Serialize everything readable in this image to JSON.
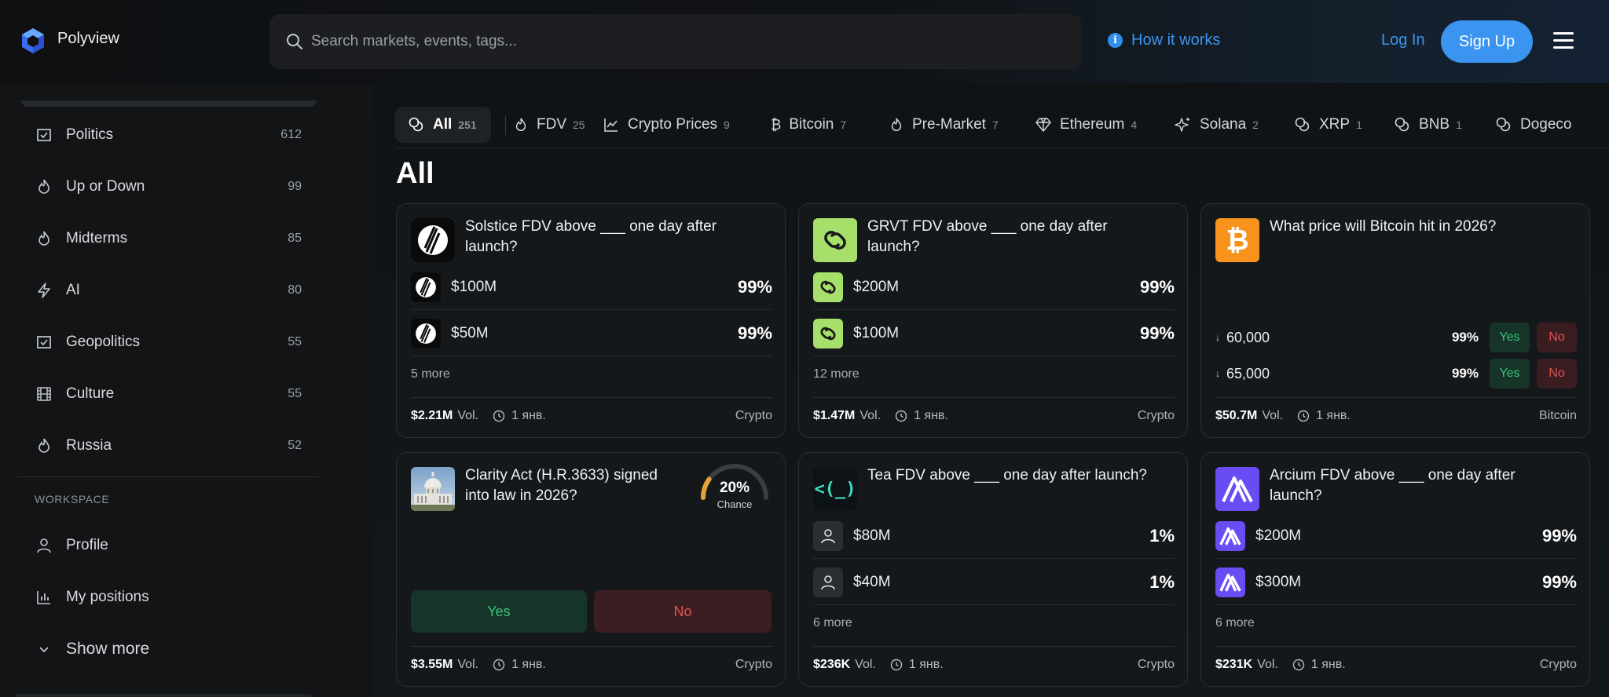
{
  "header": {
    "brand": "Polyview",
    "search_placeholder": "Search markets, events, tags...",
    "how_it_works": "How it works",
    "login": "Log In",
    "signup": "Sign Up"
  },
  "sidebar": {
    "items": [
      {
        "label": "Politics",
        "count": "612",
        "icon": "checkbox-icon"
      },
      {
        "label": "Up or Down",
        "count": "99",
        "icon": "flame-icon"
      },
      {
        "label": "Midterms",
        "count": "85",
        "icon": "flame-icon"
      },
      {
        "label": "AI",
        "count": "80",
        "icon": "bolt-icon"
      },
      {
        "label": "Geopolitics",
        "count": "55",
        "icon": "checkbox-icon"
      },
      {
        "label": "Culture",
        "count": "55",
        "icon": "film-icon"
      },
      {
        "label": "Russia",
        "count": "52",
        "icon": "flame-icon"
      }
    ],
    "section_label": "WORKSPACE",
    "workspace": [
      {
        "label": "Profile",
        "icon": "user-icon"
      },
      {
        "label": "My positions",
        "icon": "bar-chart-icon"
      },
      {
        "label": "Show more",
        "icon": "chevron-down-icon"
      }
    ]
  },
  "tabs": [
    {
      "label": "All",
      "count": "251",
      "icon": "coins-icon"
    },
    {
      "label": "FDV",
      "count": "25",
      "icon": "flame-icon"
    },
    {
      "label": "Crypto Prices",
      "count": "9",
      "icon": "line-chart-icon"
    },
    {
      "label": "Bitcoin",
      "count": "7",
      "icon": "bitcoin-icon"
    },
    {
      "label": "Pre-Market",
      "count": "7",
      "icon": "flame-icon"
    },
    {
      "label": "Ethereum",
      "count": "4",
      "icon": "diamond-icon"
    },
    {
      "label": "Solana",
      "count": "2",
      "icon": "sparkle-icon"
    },
    {
      "label": "XRP",
      "count": "1",
      "icon": "coins-icon"
    },
    {
      "label": "BNB",
      "count": "1",
      "icon": "coins-icon"
    },
    {
      "label": "Dogeco",
      "count": "",
      "icon": "coins-icon"
    }
  ],
  "page_title": "All",
  "cards": [
    {
      "title": "Solstice FDV above ___ one day after launch?",
      "outcomes": [
        {
          "name": "$100M",
          "pct": "99%"
        },
        {
          "name": "$50M",
          "pct": "99%"
        }
      ],
      "more": "5 more",
      "volume": "$2.21M",
      "vol_label": "Vol.",
      "date": "1 янв.",
      "category": "Crypto"
    },
    {
      "title": "GRVT FDV above ___ one day after launch?",
      "outcomes": [
        {
          "name": "$200M",
          "pct": "99%"
        },
        {
          "name": "$100M",
          "pct": "99%"
        }
      ],
      "more": "12 more",
      "volume": "$1.47M",
      "vol_label": "Vol.",
      "date": "1 янв.",
      "category": "Crypto"
    },
    {
      "title": "What price will Bitcoin hit in 2026?",
      "outcomes": [
        {
          "arrow": "↓",
          "name": "60,000",
          "pct": "99%",
          "yes": "Yes",
          "no": "No"
        },
        {
          "arrow": "↓",
          "name": "65,000",
          "pct": "99%",
          "yes": "Yes",
          "no": "No"
        }
      ],
      "volume": "$50.7M",
      "vol_label": "Vol.",
      "date": "1 янв.",
      "category": "Bitcoin"
    },
    {
      "title": "Clarity Act (H.R.3633) signed into law in 2026?",
      "chance_value": "20%",
      "chance_label": "Chance",
      "chance_fraction": 0.2,
      "yes": "Yes",
      "no": "No",
      "volume": "$3.55M",
      "vol_label": "Vol.",
      "date": "1 янв.",
      "category": "Crypto"
    },
    {
      "title": "Tea FDV above ___ one day after launch?",
      "outcomes": [
        {
          "name": "$80M",
          "pct": "1%"
        },
        {
          "name": "$40M",
          "pct": "1%"
        }
      ],
      "more": "6 more",
      "volume": "$236K",
      "vol_label": "Vol.",
      "date": "1 янв.",
      "category": "Crypto"
    },
    {
      "title": "Arcium FDV above ___ one day after launch?",
      "outcomes": [
        {
          "name": "$200M",
          "pct": "99%"
        },
        {
          "name": "$300M",
          "pct": "99%"
        }
      ],
      "more": "6 more",
      "volume": "$231K",
      "vol_label": "Vol.",
      "date": "1 янв.",
      "category": "Crypto"
    }
  ],
  "colors": {
    "accent": "#3b95f0",
    "yes": "#35c47d",
    "no": "#e55353",
    "bitcoin": "#f7931a",
    "grvt": "#a6e06a",
    "arcium": "#6a4cf5",
    "gauge": "#e8a13a"
  }
}
